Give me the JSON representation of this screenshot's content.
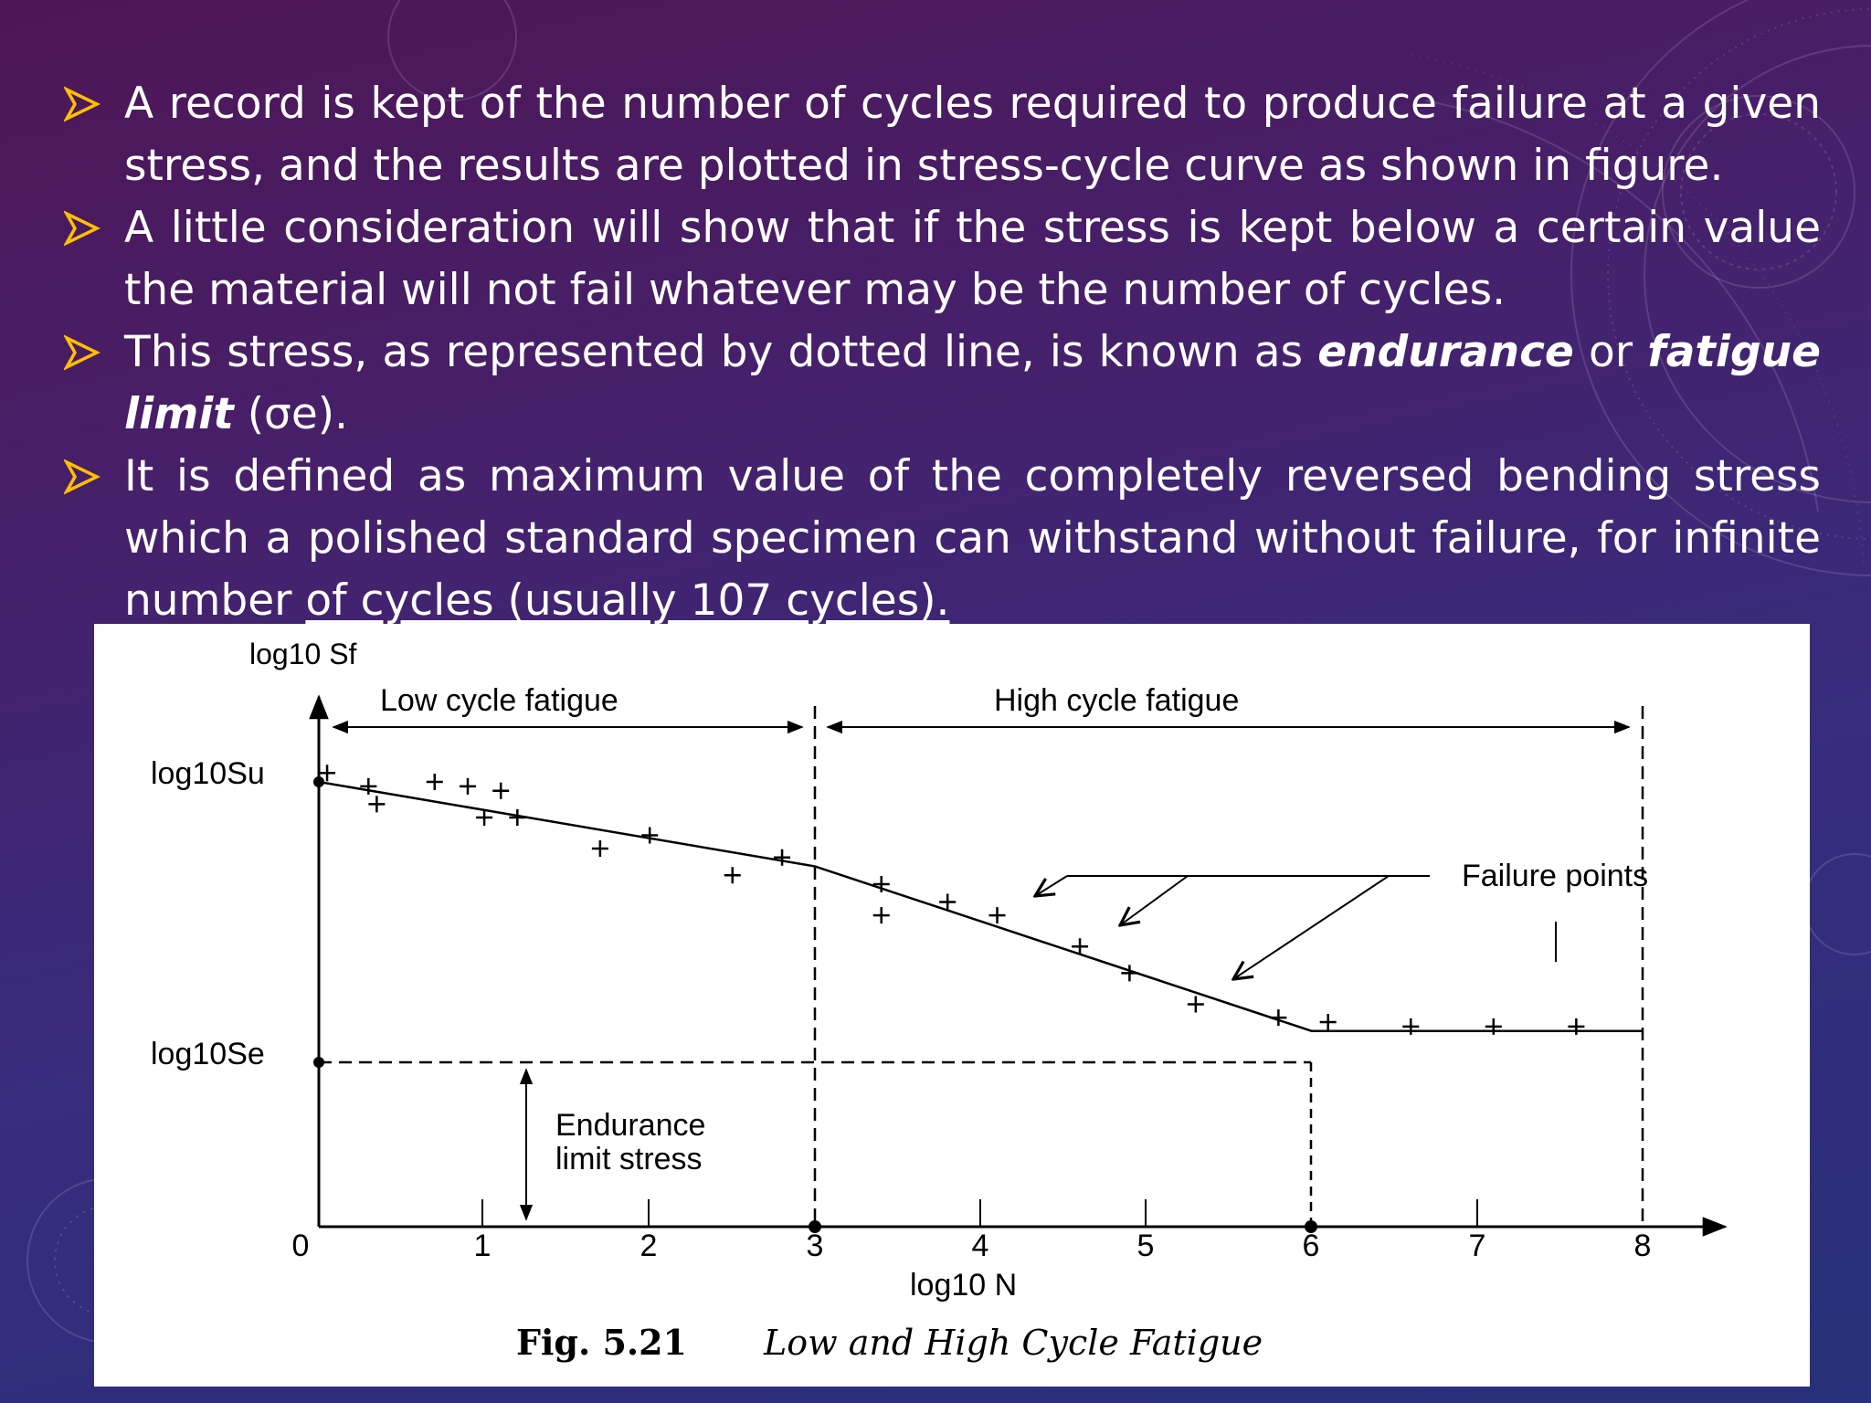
{
  "bullets": [
    {
      "text": "A record is kept of the number of cycles required to produce failure at a given stress, and the results are plotted in stress-cycle curve as shown in figure."
    },
    {
      "text": "A little consideration will show that if the stress is kept below a certain value the material will not fail whatever may be the number of cycles."
    },
    {
      "pre": "This stress, as represented by dotted line, is known as ",
      "term1": "endurance",
      "mid": " or ",
      "term2": "fatigue limit",
      "post": " (σe)."
    },
    {
      "text1": "It is defined as maximum value of the completely reversed bending stress which a polished standard specimen can withstand without failure, for infinite number ",
      "text2": "of cycles (usually 107 cycles)."
    }
  ],
  "figure": {
    "y_axis_label": "log10 Sf",
    "x_axis_label": "log10 N",
    "su_label": "log10Su",
    "se_label": "log10Se",
    "region_low": "Low cycle fatigue",
    "region_high": "High cycle fatigue",
    "failure_label": "Failure points",
    "endurance_label_1": "Endurance",
    "endurance_label_2": "limit stress",
    "caption_number": "Fig. 5.21",
    "caption_title": "Low and High Cycle Fatigue",
    "x_ticks": [
      "0",
      "1",
      "2",
      "3",
      "4",
      "5",
      "6",
      "7",
      "8"
    ]
  },
  "chart_data": {
    "type": "line",
    "x": [
      0,
      3,
      6,
      8
    ],
    "y": [
      1.0,
      0.81,
      0.44,
      0.44
    ],
    "xlim": [
      0,
      8
    ],
    "failure_points": [
      [
        0.05,
        1.02
      ],
      [
        0.3,
        0.99
      ],
      [
        0.35,
        0.95
      ],
      [
        0.7,
        1.0
      ],
      [
        0.9,
        0.99
      ],
      [
        1.1,
        0.98
      ],
      [
        1.0,
        0.92
      ],
      [
        1.2,
        0.92
      ],
      [
        1.7,
        0.85
      ],
      [
        2.0,
        0.88
      ],
      [
        2.5,
        0.79
      ],
      [
        2.8,
        0.83
      ],
      [
        3.4,
        0.7
      ],
      [
        3.4,
        0.77
      ],
      [
        3.8,
        0.73
      ],
      [
        4.1,
        0.7
      ],
      [
        4.6,
        0.63
      ],
      [
        4.9,
        0.57
      ],
      [
        5.3,
        0.5
      ],
      [
        5.8,
        0.47
      ],
      [
        6.1,
        0.46
      ],
      [
        6.6,
        0.45
      ],
      [
        7.1,
        0.45
      ],
      [
        7.6,
        0.45
      ]
    ]
  },
  "colors": {
    "accent": "#ffc000",
    "text": "#ffffff"
  }
}
